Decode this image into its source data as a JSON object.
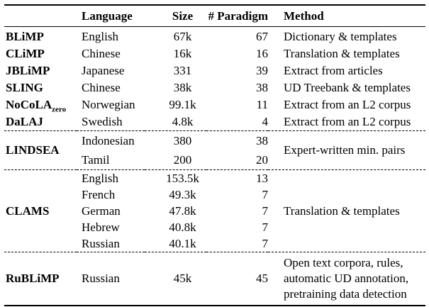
{
  "table": {
    "columns": [
      "",
      "Language",
      "Size",
      "# Paradigm",
      "Method"
    ],
    "groups": [
      {
        "rows": [
          {
            "name": "BLiMP",
            "language": "English",
            "size": "67k",
            "paradigms": "67",
            "method": "Dictionary & templates"
          },
          {
            "name": "CLiMP",
            "language": "Chinese",
            "size": "16k",
            "paradigms": "16",
            "method": "Translation & templates"
          },
          {
            "name": "JBLiMP",
            "language": "Japanese",
            "size": "331",
            "paradigms": "39",
            "method": "Extract from articles"
          },
          {
            "name": "SLING",
            "language": "Chinese",
            "size": "38k",
            "paradigms": "38",
            "method": "UD Treebank & templates"
          },
          {
            "name": "NoCoLA",
            "name_subscript": "zero",
            "language": "Norwegian",
            "size": "99.1k",
            "paradigms": "11",
            "method": "Extract from an L2 corpus"
          },
          {
            "name": "DaLAJ",
            "language": "Swedish",
            "size": "4.8k",
            "paradigms": "4",
            "method": "Extract from an L2 corpus"
          }
        ]
      },
      {
        "name": "LINDSEA",
        "method": "Expert-written min. pairs",
        "rows": [
          {
            "language": "Indonesian",
            "size": "380",
            "paradigms": "38"
          },
          {
            "language": "Tamil",
            "size": "200",
            "paradigms": "20"
          }
        ]
      },
      {
        "name": "CLAMS",
        "method": "Translation & templates",
        "rows": [
          {
            "language": "English",
            "size": "153.5k",
            "paradigms": "13"
          },
          {
            "language": "French",
            "size": "49.3k",
            "paradigms": "7"
          },
          {
            "language": "German",
            "size": "47.8k",
            "paradigms": "7"
          },
          {
            "language": "Hebrew",
            "size": "40.8k",
            "paradigms": "7"
          },
          {
            "language": "Russian",
            "size": "40.1k",
            "paradigms": "7"
          }
        ]
      },
      {
        "rows": [
          {
            "name": "RuBLiMP",
            "language": "Russian",
            "size": "45k",
            "paradigms": "45",
            "method": "Open text corpora, rules, automatic UD annotation, pretraining data detection"
          }
        ]
      }
    ]
  }
}
